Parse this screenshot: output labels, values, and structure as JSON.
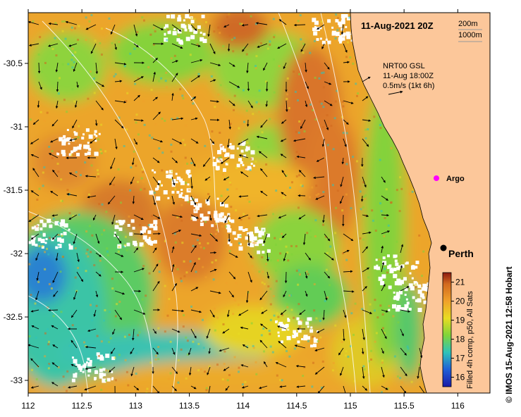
{
  "map": {
    "title": "11-Aug-2021 20Z",
    "depth_legend": [
      "200m",
      "1000m"
    ],
    "current_source": "NRT00 GSL",
    "current_time": "11-Aug 18:00Z",
    "current_scale": "0.5m/s (1kt 6h)",
    "argo_label": "Argo",
    "city_label": "Perth",
    "credit": "© IMOS 15-Aug-2021 12:58 Hobart",
    "colorbar_caption": "Filled 4h comp, p50, All Sats",
    "colorbar_ticks": [
      "21",
      "20",
      "19",
      "18",
      "17",
      "16"
    ],
    "colorbar_range": [
      15.5,
      21.5
    ],
    "lon_ticks": [
      "112",
      "112.5",
      "113",
      "113.5",
      "114",
      "114.5",
      "115",
      "115.5",
      "116"
    ],
    "lat_ticks": [
      "-30.5",
      "-31",
      "-31.5",
      "-32",
      "-32.5",
      "-33"
    ],
    "lon_range": [
      112,
      116.3
    ],
    "lat_range": [
      -30.1,
      -33.1
    ],
    "colors": {
      "land": "#fcc79a",
      "warm": "#d2691e",
      "orange": "#f0a12a",
      "yellow": "#e8dc22",
      "green": "#7fd43a",
      "cyan": "#2fc3b9",
      "blue": "#1f5fd6",
      "argo": "#ff00ff"
    }
  }
}
